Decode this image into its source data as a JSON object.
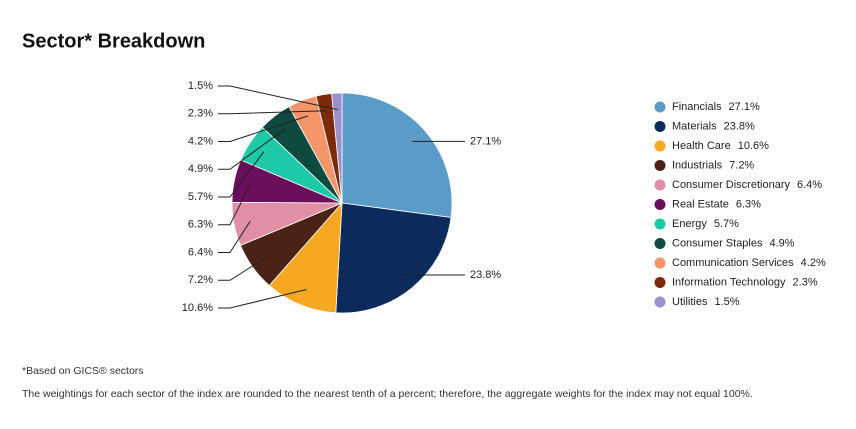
{
  "chart_data": {
    "type": "pie",
    "title": "Sector* Breakdown",
    "categories": [
      "Financials",
      "Materials",
      "Health Care",
      "Industrials",
      "Consumer Discretionary",
      "Real Estate",
      "Energy",
      "Consumer Staples",
      "Communication Services",
      "Information Technology",
      "Utilities"
    ],
    "values": [
      27.1,
      23.8,
      10.6,
      7.2,
      6.4,
      6.3,
      5.7,
      4.9,
      4.2,
      2.3,
      1.5
    ],
    "value_labels": [
      "27.1%",
      "23.8%",
      "10.6%",
      "7.2%",
      "6.4%",
      "6.3%",
      "5.7%",
      "4.9%",
      "4.2%",
      "2.3%",
      "1.5%"
    ],
    "colors": [
      "#5b9bc8",
      "#0c2a5c",
      "#f7a823",
      "#4a2316",
      "#e08fa5",
      "#6b0f5c",
      "#1ec9a8",
      "#0e4a40",
      "#f4956a",
      "#7b2a0c",
      "#9a90cc"
    ],
    "notes": [
      "*Based on GICS® sectors",
      "The weightings for each sector of the index are rounded to the nearest tenth of a percent; therefore, the aggregate weights for the index may not equal 100%."
    ]
  }
}
